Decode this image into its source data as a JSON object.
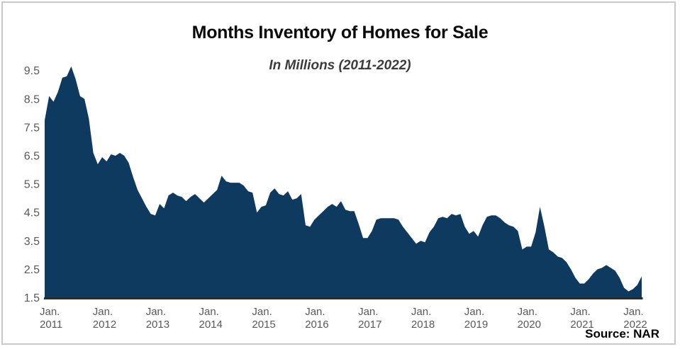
{
  "header": {
    "title": "Months Inventory of Homes for Sale",
    "subtitle": "In Millions (2011-2022)"
  },
  "source": {
    "label": "Source: NAR"
  },
  "colors": {
    "area_fill": "#0f3a5f",
    "axis_line": "#2b2b2b",
    "tick_text": "#595959",
    "title_text": "#0a0a0a",
    "subtitle_text": "#3c3c3c",
    "card_border": "#c9c9c9"
  },
  "chart_data": {
    "type": "area",
    "title": "Months Inventory of Homes for Sale",
    "subtitle": "In Millions (2011-2022)",
    "xlabel": "",
    "ylabel": "",
    "x_unit": "month",
    "x_start": "2011-01",
    "x_end": "2022-04",
    "x_tick_month_label": "Jan.",
    "x_tick_years": [
      "2011",
      "2012",
      "2013",
      "2014",
      "2015",
      "2016",
      "2017",
      "2018",
      "2019",
      "2020",
      "2021",
      "2022"
    ],
    "y_ticks": [
      1.5,
      2.5,
      3.5,
      4.5,
      5.5,
      6.5,
      7.5,
      8.5,
      9.5
    ],
    "ylim": [
      1.5,
      9.9
    ],
    "grid": false,
    "legend": "none",
    "series": [
      {
        "name": "Months inventory of homes for sale",
        "values": [
          7.75,
          8.6,
          8.4,
          8.75,
          9.25,
          9.3,
          9.65,
          9.2,
          8.6,
          8.5,
          7.8,
          6.6,
          6.2,
          6.45,
          6.3,
          6.55,
          6.5,
          6.6,
          6.5,
          6.25,
          5.75,
          5.3,
          5.0,
          4.7,
          4.45,
          4.4,
          4.8,
          4.65,
          5.1,
          5.2,
          5.1,
          5.05,
          4.9,
          5.05,
          5.15,
          5.0,
          4.85,
          5.0,
          5.15,
          5.3,
          5.8,
          5.6,
          5.55,
          5.55,
          5.55,
          5.45,
          5.25,
          5.2,
          4.5,
          4.7,
          4.75,
          5.2,
          5.35,
          5.15,
          5.1,
          5.25,
          4.95,
          5.0,
          5.15,
          4.05,
          4.0,
          4.25,
          4.4,
          4.55,
          4.7,
          4.8,
          4.7,
          4.9,
          4.6,
          4.55,
          4.55,
          4.1,
          3.6,
          3.6,
          3.85,
          4.25,
          4.3,
          4.3,
          4.3,
          4.3,
          4.25,
          4.0,
          3.8,
          3.6,
          3.4,
          3.5,
          3.45,
          3.8,
          4.0,
          4.3,
          4.35,
          4.3,
          4.45,
          4.4,
          4.45,
          4.0,
          3.75,
          3.85,
          3.65,
          4.05,
          4.35,
          4.4,
          4.4,
          4.3,
          4.15,
          4.05,
          4.0,
          3.85,
          3.2,
          3.3,
          3.3,
          3.8,
          4.7,
          4.0,
          3.2,
          3.1,
          2.95,
          2.9,
          2.75,
          2.5,
          2.2,
          2.0,
          2.0,
          2.15,
          2.35,
          2.5,
          2.55,
          2.65,
          2.55,
          2.45,
          2.2,
          1.85,
          1.72,
          1.8,
          1.95,
          2.25
        ]
      }
    ]
  }
}
